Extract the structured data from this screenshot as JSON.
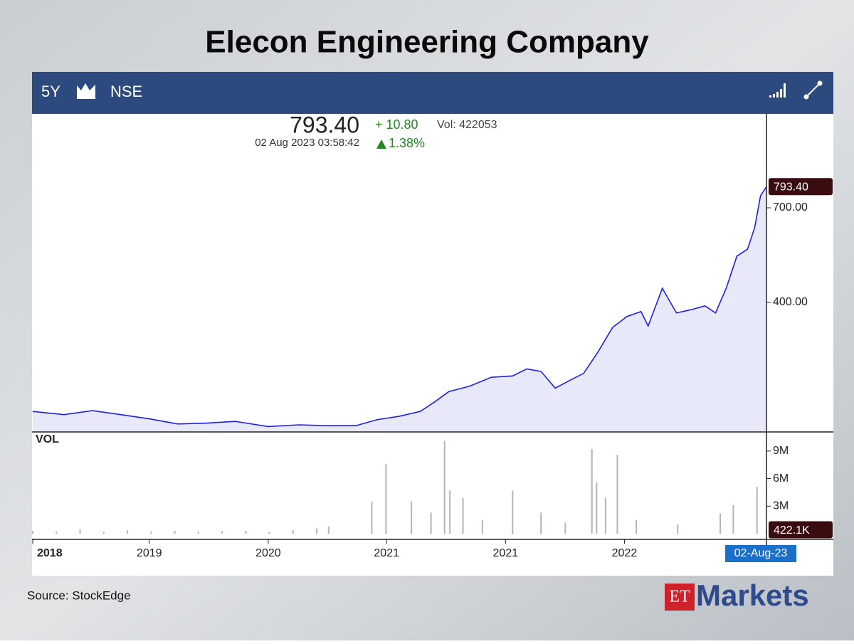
{
  "header": {
    "title": "Elecon Engineering Company"
  },
  "toolbar": {
    "period": "5Y",
    "exchange": "NSE"
  },
  "quote": {
    "last_price": "793.40",
    "timestamp": "02 Aug 2023 03:58:42",
    "change": "+ 10.80",
    "volume": "Vol: 422053",
    "change_pct": "1.38%"
  },
  "chart_data": [
    {
      "type": "area",
      "log_scale": true,
      "x": [
        0,
        53,
        101,
        149,
        197,
        245,
        294,
        342,
        398,
        450,
        498,
        546,
        582,
        619,
        655,
        679,
        703,
        739,
        775,
        811,
        835,
        859,
        883,
        907,
        931,
        955,
        980,
        1004,
        1028,
        1040,
        1064,
        1088,
        1112,
        1136,
        1154,
        1172,
        1190,
        1208,
        1220,
        1230,
        1240
      ],
      "series": [
        {
          "color": "#1f1fe0",
          "fill": "#e8e9f8",
          "values": [
            210,
            206,
            211,
            206,
            201,
            195,
            196,
            198,
            192,
            194,
            193,
            193,
            200,
            204,
            210,
            222,
            236,
            244,
            257,
            259,
            270,
            266,
            241,
            252,
            263,
            298,
            345,
            368,
            379,
            348,
            435,
            376,
            383,
            392,
            376,
            435,
            526,
            548,
            622,
            752,
            793.4
          ],
          "value_labels": [
            null,
            null,
            null,
            null,
            null,
            null,
            null,
            null,
            null,
            null,
            null,
            null,
            null,
            null,
            null,
            null,
            null,
            null,
            null,
            null,
            null,
            null,
            null,
            null,
            null,
            null,
            null,
            null,
            null,
            null,
            null,
            null,
            null,
            null,
            null,
            null,
            null,
            null,
            null,
            null,
            "793.40"
          ]
        }
      ],
      "xlim": [
        0,
        1240
      ],
      "ylim": [
        186,
        1220
      ],
      "yticks": [
        {
          "value": 400,
          "label": "400.00"
        },
        {
          "value": 700,
          "label": "700.00"
        }
      ]
    },
    {
      "type": "bar",
      "label": "VOL",
      "x": [
        0,
        40,
        80,
        120,
        160,
        200,
        240,
        280,
        320,
        360,
        400,
        440,
        480,
        500,
        573,
        597,
        640,
        673,
        696,
        705,
        727,
        760,
        811,
        859,
        900,
        945,
        953,
        968,
        988,
        1020,
        1090,
        1162,
        1184,
        1224,
        1240
      ],
      "series": [
        {
          "color": "#b4b4b4",
          "values": [
            300000,
            250000,
            500000,
            200000,
            350000,
            250000,
            300000,
            200000,
            250000,
            300000,
            200000,
            400000,
            600000,
            800000,
            3500000,
            7600000,
            3500000,
            2300000,
            10100000,
            4700000,
            3900000,
            1500000,
            4700000,
            2300000,
            1200000,
            9200000,
            5600000,
            3900000,
            8600000,
            1500000,
            1000000,
            2200000,
            3100000,
            5100000,
            422053
          ],
          "value_labels": [
            null,
            null,
            null,
            null,
            null,
            null,
            null,
            null,
            null,
            null,
            null,
            null,
            null,
            null,
            null,
            null,
            null,
            null,
            null,
            null,
            null,
            null,
            null,
            null,
            null,
            null,
            null,
            null,
            null,
            null,
            null,
            null,
            null,
            null,
            "422.1K"
          ]
        }
      ],
      "xlim": [
        0,
        1240
      ],
      "ylim": [
        0,
        11000000
      ],
      "yticks": [
        {
          "value": 3000000,
          "label": "3M"
        },
        {
          "value": 6000000,
          "label": "6M"
        },
        {
          "value": 9000000,
          "label": "9M"
        }
      ],
      "xticks": [
        {
          "value": 0,
          "label": "2018"
        },
        {
          "value": 197,
          "label": "2019"
        },
        {
          "value": 398,
          "label": "2020"
        },
        {
          "value": 598,
          "label": "2021"
        },
        {
          "value": 799,
          "label": "2021"
        },
        {
          "value": 1000,
          "label": "2022"
        },
        {
          "value": 1240,
          "label": "02-Aug-23"
        }
      ]
    }
  ],
  "footer": {
    "source": "Source:  StockEdge",
    "logo_et": "ET",
    "logo_markets": "Markets"
  }
}
